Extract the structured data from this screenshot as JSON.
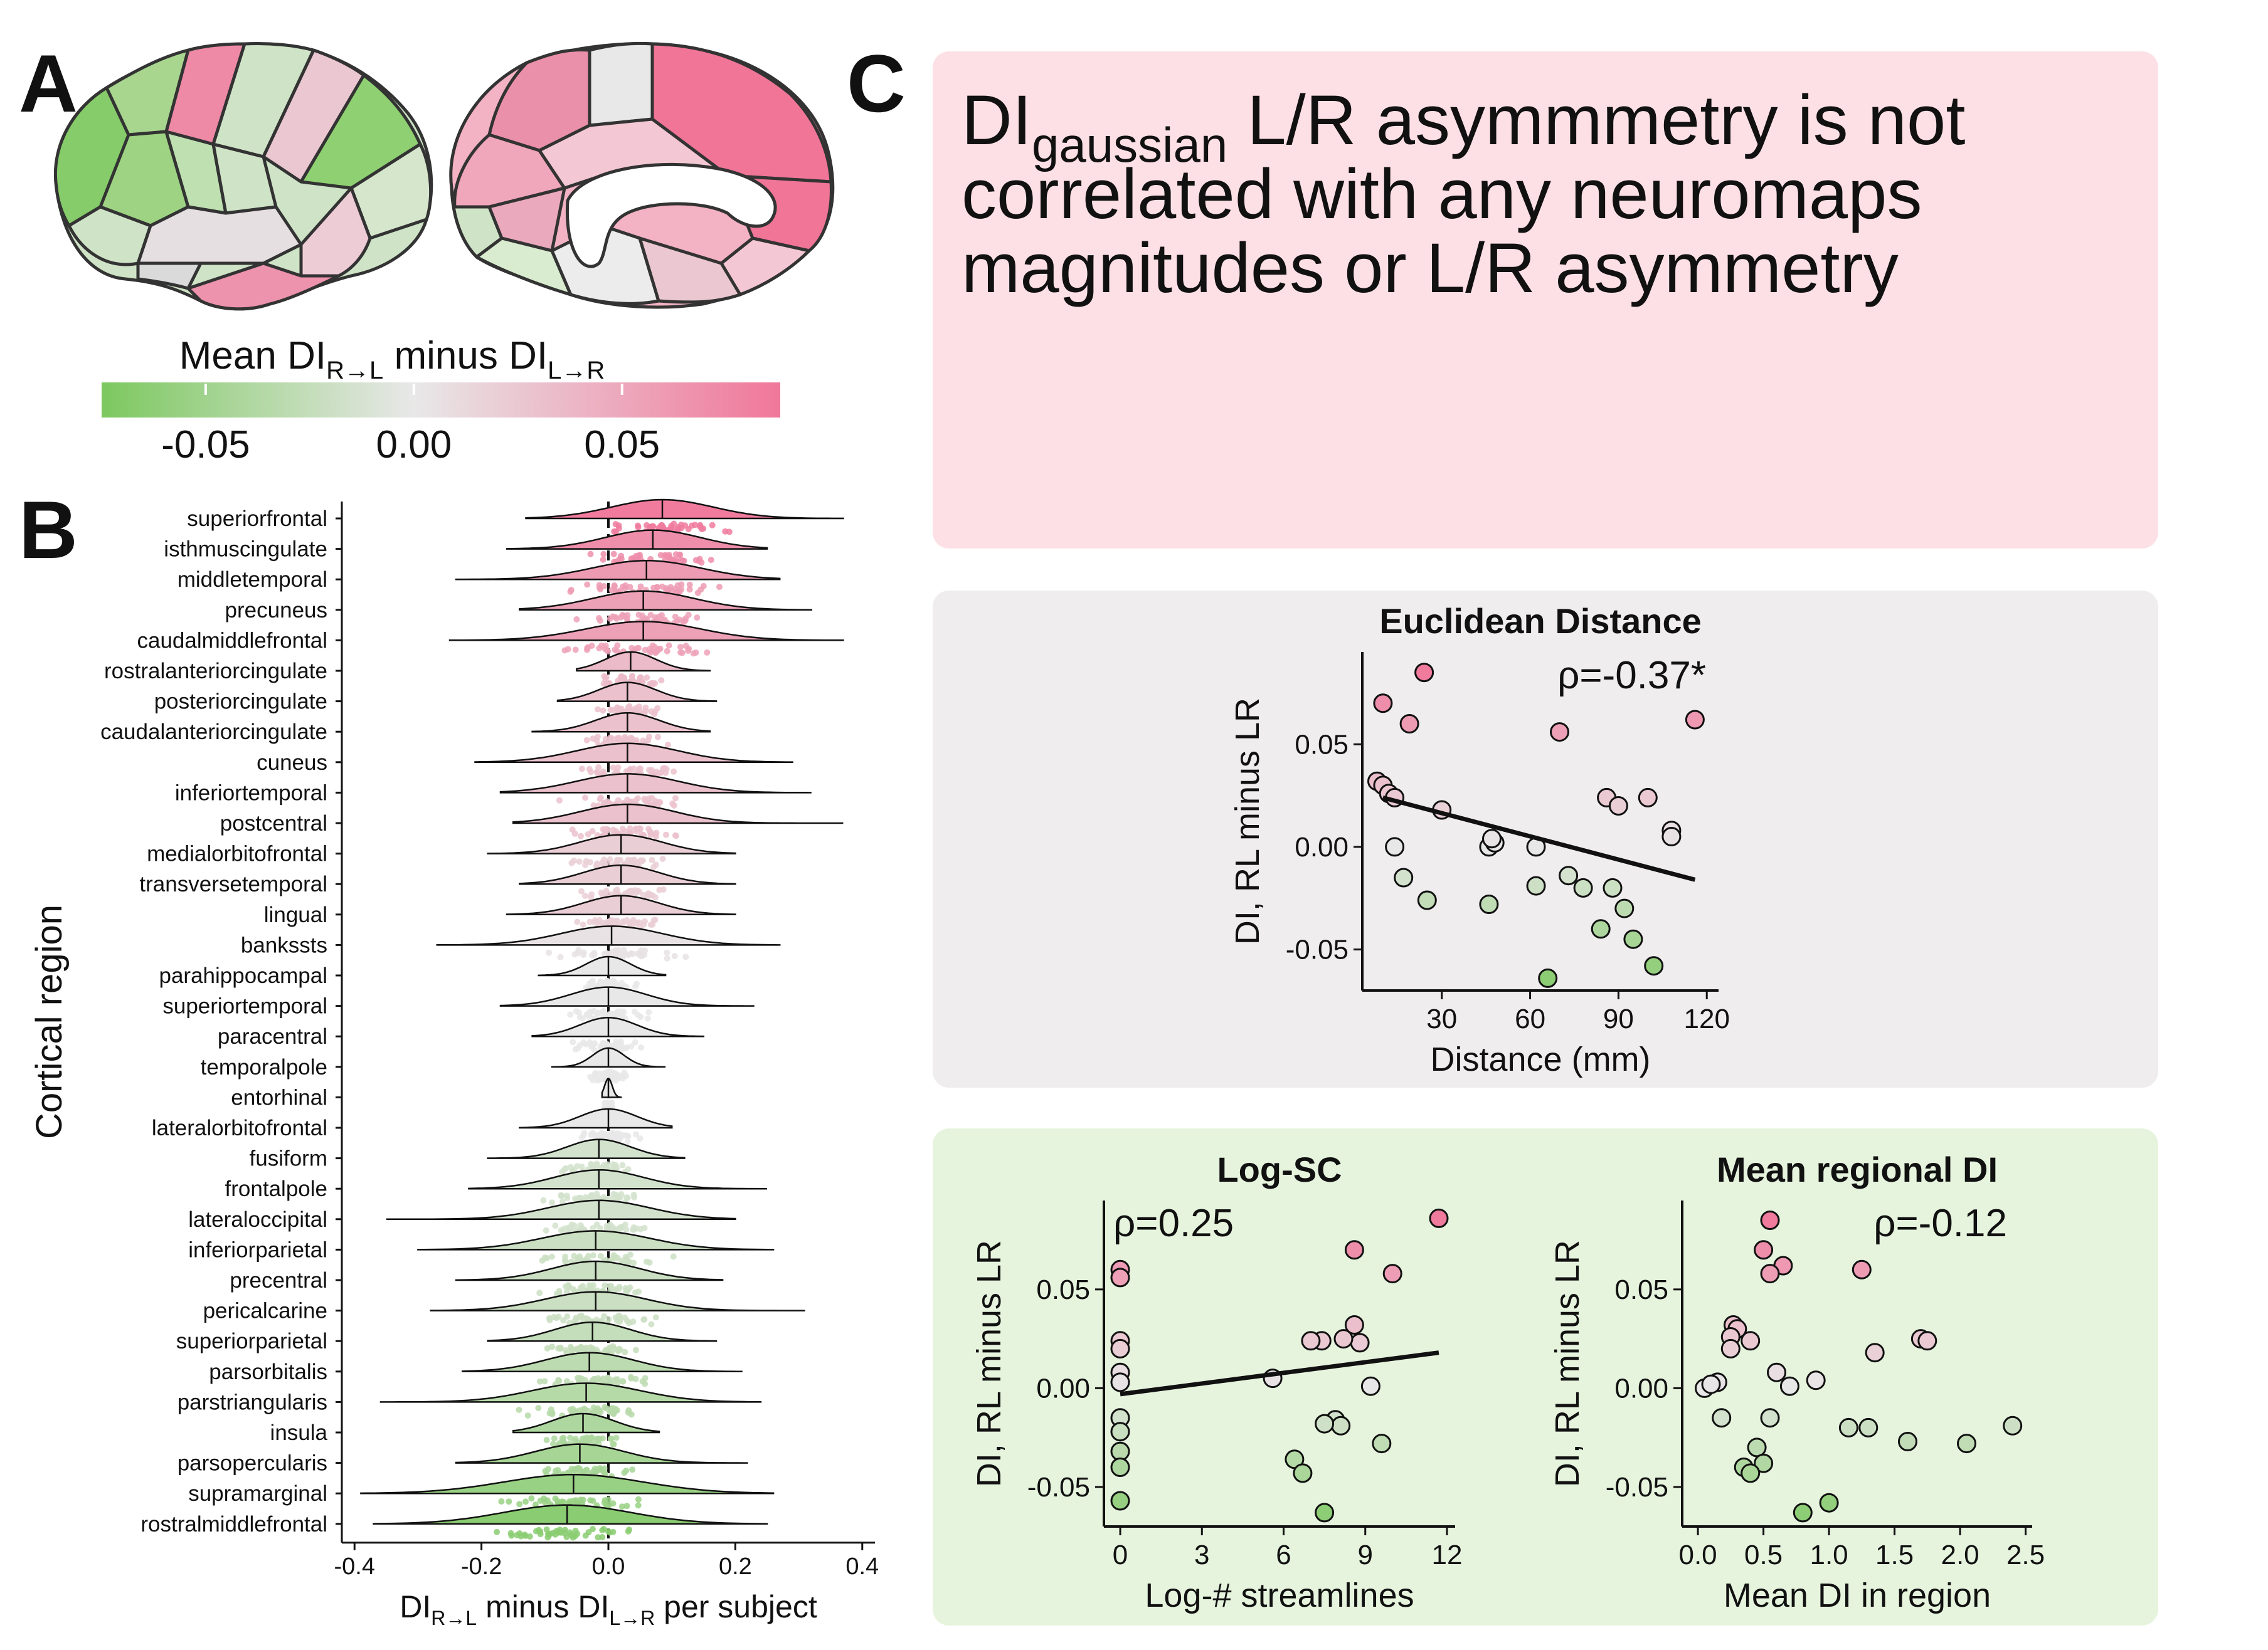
{
  "panel_labels": {
    "a": "A",
    "b": "B",
    "c": "C"
  },
  "colormap": {
    "title_main": "Mean DI",
    "title_sub1": "R→L",
    "title_mid": " minus DI",
    "title_sub2": "L→R",
    "ticks": [
      "-0.05",
      "0.00",
      "0.05"
    ],
    "tick_values": [
      -0.05,
      0.0,
      0.05
    ],
    "range": [
      -0.075,
      0.088
    ],
    "colors": {
      "green": "#7cc85f",
      "neutral": "#e8e8e8",
      "pink": "#f0779a"
    }
  },
  "panel_c": {
    "title_main": "DI",
    "title_sub": "gaussian",
    "title_rest": " L/R asymmmetry is not",
    "title_line2": "correlated with any neuromaps",
    "title_line3": "magnitudes or L/R asymmetry",
    "bg_pink": "#fde0e6",
    "bg_gray": "#efedee",
    "bg_green": "#e6f4de"
  },
  "chart_data": [
    {
      "type": "violin",
      "ylabel": "Cortical region",
      "xlabel_main": "DI",
      "xlabel_sub1": "R→L",
      "xlabel_mid": " minus DI",
      "xlabel_sub2": "L→R",
      "xlabel_rest": " per subject",
      "xticks": [
        "-0.4",
        "-0.2",
        "0.0",
        "0.2",
        "0.4"
      ],
      "xlim": [
        -0.42,
        0.42
      ],
      "categories": [
        "superiorfrontal",
        "isthmuscingulate",
        "middletemporal",
        "precuneus",
        "caudalmiddlefrontal",
        "rostralanteriorcingulate",
        "posteriorcingulate",
        "caudalanteriorcingulate",
        "cuneus",
        "inferiortemporal",
        "postcentral",
        "medialorbitofrontal",
        "transversetemporal",
        "lingual",
        "bankssts",
        "parahippocampal",
        "superiortemporal",
        "paracentral",
        "temporalpole",
        "entorhinal",
        "lateralorbitofrontal",
        "fusiform",
        "frontalpole",
        "lateraloccipital",
        "inferiorparietal",
        "precentral",
        "pericalcarine",
        "superiorparietal",
        "parsorbitalis",
        "parstriangularis",
        "insula",
        "parsopercularis",
        "supramarginal",
        "rostralmiddlefrontal"
      ],
      "means": [
        0.085,
        0.07,
        0.06,
        0.055,
        0.055,
        0.035,
        0.03,
        0.03,
        0.03,
        0.03,
        0.03,
        0.02,
        0.02,
        0.02,
        0.005,
        0.0,
        0.0,
        0.0,
        0.0,
        0.0,
        0.0,
        -0.015,
        -0.015,
        -0.015,
        -0.02,
        -0.02,
        -0.02,
        -0.025,
        -0.03,
        -0.035,
        -0.04,
        -0.045,
        -0.055,
        -0.065
      ],
      "ranges": [
        [
          -0.13,
          0.37
        ],
        [
          -0.16,
          0.25
        ],
        [
          -0.24,
          0.27
        ],
        [
          -0.14,
          0.32
        ],
        [
          -0.25,
          0.37
        ],
        [
          -0.05,
          0.16
        ],
        [
          -0.08,
          0.17
        ],
        [
          -0.12,
          0.16
        ],
        [
          -0.21,
          0.29
        ],
        [
          -0.17,
          0.32
        ],
        [
          -0.15,
          0.37
        ],
        [
          -0.19,
          0.2
        ],
        [
          -0.14,
          0.2
        ],
        [
          -0.16,
          0.2
        ],
        [
          -0.27,
          0.27
        ],
        [
          -0.11,
          0.09
        ],
        [
          -0.17,
          0.23
        ],
        [
          -0.12,
          0.15
        ],
        [
          -0.09,
          0.09
        ],
        [
          -0.01,
          0.02
        ],
        [
          -0.14,
          0.1
        ],
        [
          -0.19,
          0.12
        ],
        [
          -0.22,
          0.25
        ],
        [
          -0.35,
          0.2
        ],
        [
          -0.3,
          0.26
        ],
        [
          -0.24,
          0.18
        ],
        [
          -0.28,
          0.31
        ],
        [
          -0.19,
          0.17
        ],
        [
          -0.23,
          0.21
        ],
        [
          -0.36,
          0.24
        ],
        [
          -0.15,
          0.08
        ],
        [
          -0.24,
          0.22
        ],
        [
          -0.39,
          0.26
        ],
        [
          -0.37,
          0.25
        ]
      ],
      "spreads": [
        0.08,
        0.075,
        0.085,
        0.08,
        0.09,
        0.04,
        0.045,
        0.05,
        0.08,
        0.08,
        0.075,
        0.065,
        0.06,
        0.06,
        0.08,
        0.035,
        0.06,
        0.045,
        0.025,
        0.006,
        0.045,
        0.05,
        0.07,
        0.08,
        0.085,
        0.07,
        0.08,
        0.06,
        0.07,
        0.085,
        0.05,
        0.07,
        0.11,
        0.1
      ]
    },
    {
      "type": "scatter",
      "title": "Euclidean Distance",
      "annotation": "ρ=-0.37*",
      "xlabel": "Distance (mm)",
      "ylabel": "DI, RL minus LR",
      "xticks": [
        "30",
        "60",
        "90",
        "120"
      ],
      "yticks": [
        "0.05",
        "0.00",
        "-0.05"
      ],
      "xlim": [
        3,
        124
      ],
      "ylim": [
        -0.07,
        0.095
      ],
      "x": [
        24,
        10,
        19,
        70,
        116,
        8,
        10,
        12,
        14,
        86,
        90,
        100,
        108,
        30,
        14,
        46,
        48,
        47,
        62,
        108,
        17,
        25,
        46,
        62,
        73,
        78,
        88,
        92,
        95,
        84,
        102,
        66
      ],
      "y": [
        0.085,
        0.07,
        0.06,
        0.056,
        0.062,
        0.032,
        0.03,
        0.026,
        0.024,
        0.024,
        0.02,
        0.024,
        0.008,
        0.018,
        0.0,
        0.0,
        0.002,
        0.004,
        0.0,
        0.005,
        -0.015,
        -0.026,
        -0.028,
        -0.019,
        -0.014,
        -0.02,
        -0.02,
        -0.03,
        -0.045,
        -0.04,
        -0.058,
        -0.064
      ],
      "fit": {
        "x": [
          10,
          116
        ],
        "y": [
          0.024,
          -0.016
        ]
      }
    },
    {
      "type": "scatter",
      "title": "Log-SC",
      "annotation": "ρ=0.25",
      "xlabel": "Log-# streamlines",
      "ylabel": "DI, RL minus LR",
      "xticks": [
        "0",
        "3",
        "6",
        "9",
        "12"
      ],
      "yticks": [
        "0.05",
        "0.00",
        "-0.05"
      ],
      "xlim": [
        -0.6,
        12.3
      ],
      "ylim": [
        -0.07,
        0.095
      ],
      "x": [
        0,
        0,
        0,
        0,
        0,
        0,
        0,
        0,
        0,
        0,
        0,
        11.7,
        8.6,
        10,
        7.4,
        8.8,
        8.2,
        8.6,
        7,
        5.6,
        9.2,
        7.9,
        8.1,
        7.5,
        6.4,
        9.6,
        6.7,
        7.5
      ],
      "y": [
        0.06,
        0.056,
        0.024,
        0.02,
        0.008,
        0.003,
        -0.015,
        -0.022,
        -0.032,
        -0.04,
        -0.057,
        0.086,
        0.07,
        0.058,
        0.024,
        0.023,
        0.025,
        0.032,
        0.024,
        0.005,
        0.001,
        -0.016,
        -0.019,
        -0.018,
        -0.036,
        -0.028,
        -0.043,
        -0.063
      ],
      "fit": {
        "x": [
          0,
          11.7
        ],
        "y": [
          -0.003,
          0.018
        ]
      }
    },
    {
      "type": "scatter",
      "title": "Mean regional DI",
      "annotation": "ρ=-0.12",
      "xlabel": "Mean DI in region",
      "ylabel": "DI, RL minus LR",
      "xticks": [
        "0.0",
        "0.5",
        "1.0",
        "1.5",
        "2.0",
        "2.5"
      ],
      "yticks": [
        "0.05",
        "0.00",
        "-0.05"
      ],
      "xlim": [
        -0.12,
        2.55
      ],
      "ylim": [
        -0.07,
        0.095
      ],
      "x": [
        0.55,
        0.5,
        0.65,
        0.55,
        1.25,
        0.27,
        0.3,
        0.25,
        0.4,
        1.7,
        1.75,
        1.35,
        0.25,
        0.6,
        0.15,
        0.05,
        0.1,
        0.7,
        0.9,
        0.18,
        0.55,
        1.15,
        1.3,
        1.6,
        2.05,
        2.4,
        0.35,
        0.45,
        0.5,
        0.4,
        0.8,
        1.0
      ],
      "y": [
        0.085,
        0.07,
        0.062,
        0.058,
        0.06,
        0.032,
        0.03,
        0.026,
        0.024,
        0.025,
        0.024,
        0.018,
        0.02,
        0.008,
        0.003,
        0.0,
        0.002,
        0.001,
        0.004,
        -0.015,
        -0.015,
        -0.02,
        -0.02,
        -0.027,
        -0.028,
        -0.019,
        -0.04,
        -0.03,
        -0.038,
        -0.043,
        -0.063,
        -0.058
      ]
    }
  ]
}
